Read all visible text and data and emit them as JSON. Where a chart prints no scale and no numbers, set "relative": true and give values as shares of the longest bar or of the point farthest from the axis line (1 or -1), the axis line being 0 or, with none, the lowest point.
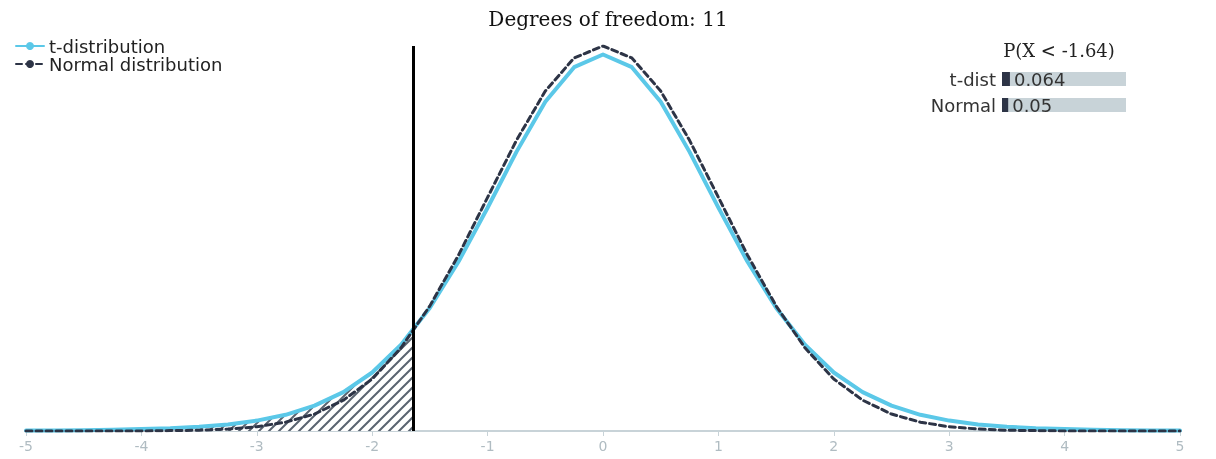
{
  "chart_data": [
    {
      "type": "line",
      "title": "Degrees of freedom: 11",
      "relative": true,
      "legend": "top left",
      "grid": false,
      "marker": "none",
      "x": [
        -5,
        -4.75,
        -4.5,
        -4.25,
        -4,
        -3.75,
        -3.5,
        -3.25,
        -3,
        -2.75,
        -2.5,
        -2.25,
        -2,
        -1.75,
        -1.5,
        -1.25,
        -1,
        -0.75,
        -0.5,
        -0.25,
        0,
        0.25,
        0.5,
        0.75,
        1,
        1.25,
        1.5,
        1.75,
        2,
        2.25,
        2.5,
        2.75,
        3,
        3.25,
        3.5,
        3.75,
        4,
        4.25,
        4.5,
        4.75,
        5
      ],
      "xlim": [
        -5,
        5
      ],
      "xticks": [
        -5,
        -4,
        -3,
        -2,
        -1,
        0,
        1,
        2,
        3,
        4,
        5
      ],
      "series": [
        {
          "name": "t-distribution",
          "color": "#5bc8e8",
          "line_style": "solid",
          "values": [
            0.001,
            0.001,
            0.002,
            0.003,
            0.005,
            0.007,
            0.011,
            0.017,
            0.027,
            0.042,
            0.066,
            0.101,
            0.152,
            0.224,
            0.32,
            0.441,
            0.58,
            0.725,
            0.855,
            0.945,
            0.978,
            0.945,
            0.855,
            0.725,
            0.58,
            0.441,
            0.32,
            0.224,
            0.152,
            0.101,
            0.066,
            0.042,
            0.027,
            0.017,
            0.011,
            0.007,
            0.005,
            0.003,
            0.002,
            0.001,
            0.001
          ]
        },
        {
          "name": "Normal distribution",
          "color": "#2d3446",
          "line_style": "dashed",
          "values": [
            0,
            0,
            0,
            0,
            0,
            0.001,
            0.002,
            0.005,
            0.011,
            0.023,
            0.044,
            0.08,
            0.135,
            0.216,
            0.325,
            0.458,
            0.607,
            0.755,
            0.883,
            0.969,
            1,
            0.969,
            0.883,
            0.755,
            0.607,
            0.458,
            0.325,
            0.216,
            0.135,
            0.08,
            0.044,
            0.023,
            0.011,
            0.005,
            0.002,
            0.001,
            0,
            0,
            0,
            0,
            0
          ]
        },
        {
          "type": "area",
          "color": "#5a6470",
          "x": [
            -5,
            -4.75,
            -4.5,
            -4.25,
            -4,
            -3.75,
            -3.5,
            -3.25,
            -3,
            -2.75,
            -2.5,
            -2.25,
            -2,
            -1.75,
            -1.64
          ],
          "values": [
            0.001,
            0.001,
            0.002,
            0.003,
            0.005,
            0.007,
            0.011,
            0.017,
            0.027,
            0.042,
            0.066,
            0.101,
            0.152,
            0.224,
            0.263
          ]
        }
      ],
      "ref_lines": [
        {
          "axis": "x",
          "value": -1.64,
          "color": "#000000"
        }
      ]
    },
    {
      "type": "bar",
      "orientation": "horizontal",
      "title": "P(X < -1.64)",
      "categories": [
        "t-dist",
        "Normal"
      ],
      "values": [
        0.064,
        0.05
      ],
      "color": "#2d3446",
      "data_labels": true,
      "xlim": [
        0,
        1
      ],
      "tick_labels": "y"
    }
  ]
}
